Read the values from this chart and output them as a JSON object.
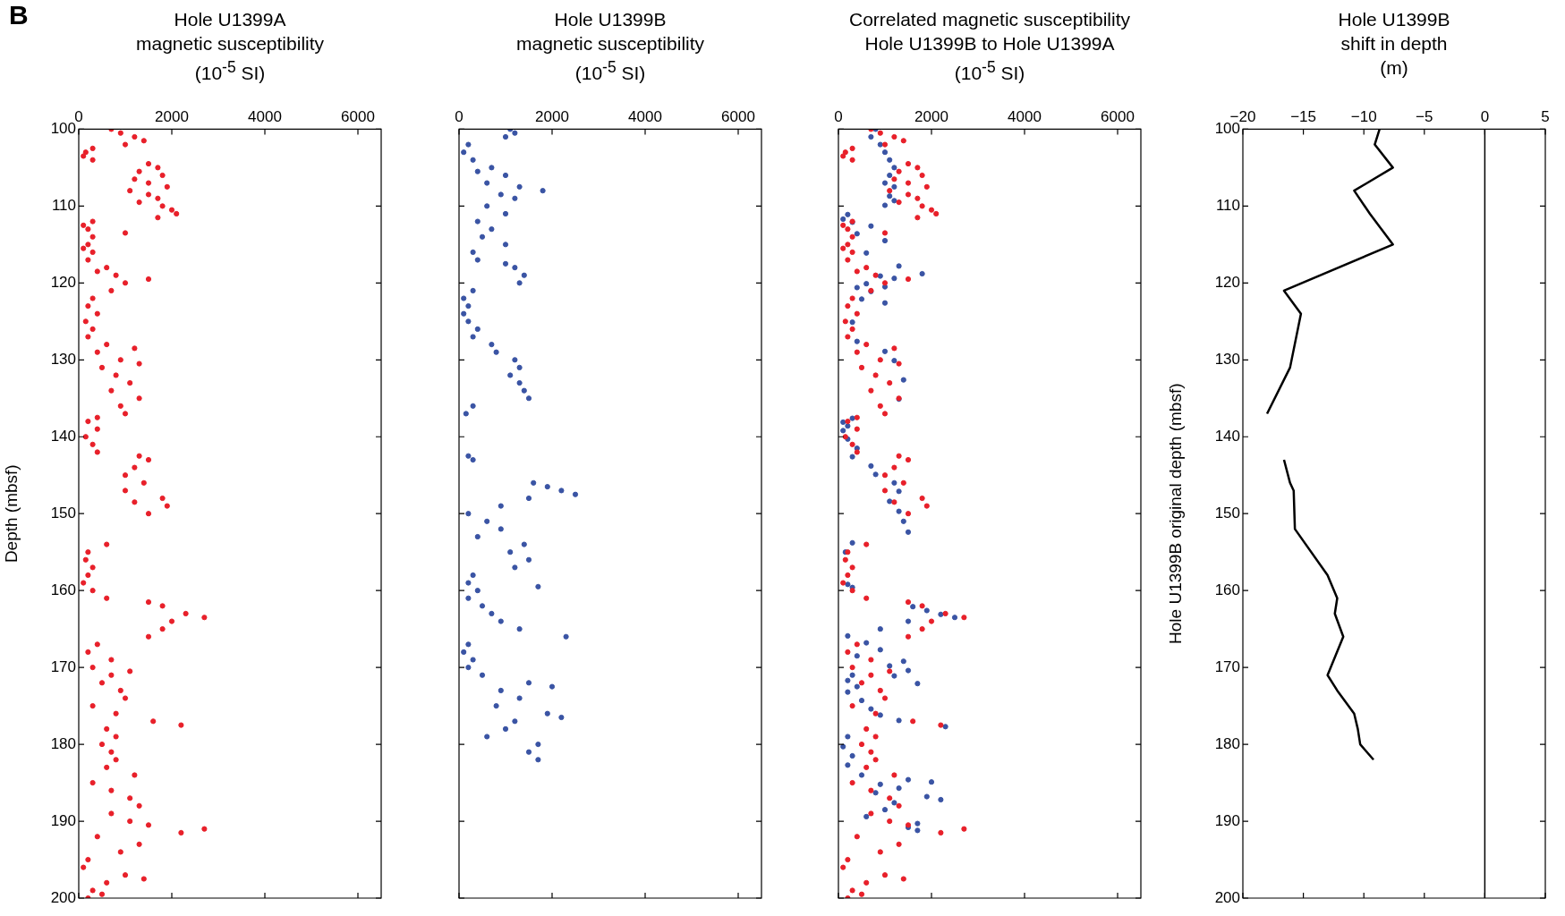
{
  "chart_data": [
    {
      "type": "scatter",
      "title": "Hole U1399A\nmagnetic susceptibility\n(10$^{-5}$ SI)",
      "ylabel": "Depth (mbsf)",
      "annotations": [
        "B"
      ],
      "xlim": [
        0,
        6500
      ],
      "xticks": [
        0,
        2000,
        4000,
        6000
      ],
      "ylim": [
        200,
        100
      ],
      "yticks": [
        100,
        110,
        120,
        130,
        140,
        150,
        160,
        170,
        180,
        190,
        200
      ],
      "marker": "circle",
      "series": [
        {
          "color": "#e8202a",
          "x": [
            700,
            900,
            1200,
            1400,
            1000,
            300,
            150,
            100,
            300,
            1500,
            1700,
            1300,
            1800,
            1200,
            1500,
            1900,
            1100,
            1500,
            1700,
            1300,
            1800,
            2000,
            2100,
            1700,
            300,
            100,
            200,
            1000,
            300,
            200,
            100,
            300,
            200,
            600,
            400,
            800,
            1500,
            1000,
            700,
            300,
            200,
            400,
            150,
            300,
            200,
            600,
            1200,
            400,
            900,
            1300,
            500,
            800,
            1100,
            700,
            1300,
            900,
            1000,
            400,
            200,
            400,
            150,
            300,
            400,
            1300,
            1500,
            1200,
            1000,
            1400,
            1000,
            1800,
            1200,
            1900,
            1500,
            600,
            200,
            150,
            300,
            200,
            100,
            300,
            600,
            1500,
            1800,
            2300,
            2700,
            2000,
            1800,
            1500,
            400,
            200,
            700,
            300,
            1100,
            700,
            500,
            900,
            1000,
            300,
            800,
            1600,
            2200,
            600,
            800,
            500,
            700,
            800,
            600,
            1200,
            300,
            700,
            1100,
            1300,
            700,
            1100,
            1500,
            2700,
            2200,
            400,
            1300,
            900,
            200,
            100,
            1000,
            1400,
            600,
            300,
            500,
            200
          ],
          "values": [
            100,
            100.5,
            101,
            101.5,
            102,
            102.5,
            103,
            103.5,
            104,
            104.5,
            105,
            105.5,
            106,
            106.5,
            107,
            107.5,
            108,
            108.5,
            109,
            109.5,
            110,
            110.5,
            111,
            111.5,
            112,
            112.5,
            113,
            113.5,
            114,
            115,
            115.5,
            116,
            117,
            118,
            118.5,
            119,
            119.5,
            120,
            121,
            122,
            123,
            124,
            125,
            126,
            127,
            128,
            128.5,
            129,
            130,
            130.5,
            131,
            132,
            133,
            134,
            135,
            136,
            137,
            137.5,
            138,
            139,
            140,
            141,
            142,
            142.5,
            143,
            144,
            145,
            146,
            147,
            148,
            148.5,
            149,
            150,
            154,
            155,
            156,
            157,
            158,
            159,
            160,
            161,
            161.5,
            162,
            163,
            163.5,
            164,
            165,
            166,
            167,
            168,
            169,
            170,
            170.5,
            171,
            172,
            173,
            174,
            175,
            176,
            177,
            177.5,
            178,
            179,
            180,
            181,
            182,
            183,
            184,
            185,
            186,
            187,
            188,
            189,
            190,
            190.5,
            191,
            191.5,
            192,
            193,
            194,
            195,
            196,
            197,
            197.5,
            198,
            199,
            199.5,
            200
          ]
        }
      ]
    },
    {
      "type": "scatter",
      "title": "Hole U1399B\nmagnetic susceptibility\n(10$^{-5}$ SI)",
      "tick_labels": "x",
      "xlim": [
        0,
        6500
      ],
      "xticks": [
        0,
        2000,
        4000,
        6000
      ],
      "ylim": [
        200,
        100
      ],
      "yticks": [
        100,
        110,
        120,
        130,
        140,
        150,
        160,
        170,
        180,
        190,
        200
      ],
      "marker": "circle",
      "series": [
        {
          "color": "#3a54a4",
          "x": [
            1100,
            1200,
            1000,
            200,
            100,
            300,
            700,
            400,
            1000,
            600,
            1300,
            1800,
            900,
            1200,
            600,
            1000,
            400,
            700,
            500,
            1000,
            300,
            400,
            1000,
            1200,
            1400,
            1300,
            300,
            100,
            200,
            100,
            200,
            400,
            300,
            700,
            800,
            1200,
            1300,
            1100,
            1300,
            1400,
            1500,
            300,
            150,
            200,
            300,
            1600,
            1900,
            2200,
            2500,
            1500,
            900,
            200,
            600,
            900,
            400,
            1400,
            1100,
            1500,
            1200,
            300,
            200,
            1700,
            400,
            200,
            500,
            700,
            900,
            1300,
            2300,
            200,
            100,
            300,
            200,
            500,
            1500,
            2000,
            900,
            1300,
            800,
            1900,
            2200,
            1200,
            1000,
            600,
            1700,
            1500,
            1700
          ],
          "values": [
            100,
            100.5,
            101,
            102,
            103,
            104,
            105,
            105.5,
            106,
            107,
            107.5,
            108,
            108.5,
            109,
            110,
            111,
            112,
            113,
            114,
            115,
            116,
            117,
            117.5,
            118,
            119,
            120,
            121,
            122,
            123,
            124,
            125,
            126,
            127,
            128,
            129,
            130,
            131,
            132,
            133,
            134,
            135,
            136,
            137,
            142.5,
            143,
            146,
            146.5,
            147,
            147.5,
            148,
            149,
            150,
            151,
            152,
            153,
            154,
            155,
            156,
            157,
            158,
            159,
            159.5,
            160,
            161,
            162,
            163,
            164,
            165,
            166,
            167,
            168,
            169,
            170,
            171,
            172,
            172.5,
            173,
            174,
            175,
            176,
            176.5,
            177,
            178,
            179,
            180,
            181,
            182
          ]
        }
      ]
    },
    {
      "type": "scatter",
      "title": "Correlated magnetic susceptibility\nHole U1399B to Hole U1399A\n(10$^{-5}$ SI)",
      "tick_labels": "x",
      "xlim": [
        0,
        6500
      ],
      "xticks": [
        0,
        2000,
        4000,
        6000
      ],
      "ylim": [
        200,
        100
      ],
      "yticks": [
        100,
        110,
        120,
        130,
        140,
        150,
        160,
        170,
        180,
        190,
        200
      ],
      "marker": "circle",
      "series": [
        {
          "color": "#e8202a",
          "x": [
            700,
            900,
            1200,
            1400,
            1000,
            300,
            150,
            100,
            300,
            1500,
            1700,
            1300,
            1800,
            1200,
            1500,
            1900,
            1100,
            1500,
            1700,
            1300,
            1800,
            2000,
            2100,
            1700,
            300,
            100,
            200,
            1000,
            300,
            200,
            100,
            300,
            200,
            600,
            400,
            800,
            1500,
            1000,
            700,
            300,
            200,
            400,
            150,
            300,
            200,
            600,
            1200,
            400,
            900,
            1300,
            500,
            800,
            1100,
            700,
            1300,
            900,
            1000,
            400,
            200,
            400,
            150,
            300,
            400,
            1300,
            1500,
            1200,
            1000,
            1400,
            1000,
            1800,
            1200,
            1900,
            1500,
            600,
            200,
            150,
            300,
            200,
            100,
            300,
            600,
            1500,
            1800,
            2300,
            2700,
            2000,
            1800,
            1500,
            400,
            200,
            700,
            300,
            1100,
            700,
            500,
            900,
            1000,
            300,
            800,
            1600,
            2200,
            600,
            800,
            500,
            700,
            800,
            600,
            1200,
            300,
            700,
            1100,
            1300,
            700,
            1100,
            1500,
            2700,
            2200,
            400,
            1300,
            900,
            200,
            100,
            1000,
            1400,
            600,
            300,
            500,
            200
          ],
          "values": [
            100,
            100.5,
            101,
            101.5,
            102,
            102.5,
            103,
            103.5,
            104,
            104.5,
            105,
            105.5,
            106,
            106.5,
            107,
            107.5,
            108,
            108.5,
            109,
            109.5,
            110,
            110.5,
            111,
            111.5,
            112,
            112.5,
            113,
            113.5,
            114,
            115,
            115.5,
            116,
            117,
            118,
            118.5,
            119,
            119.5,
            120,
            121,
            122,
            123,
            124,
            125,
            126,
            127,
            128,
            128.5,
            129,
            130,
            130.5,
            131,
            132,
            133,
            134,
            135,
            136,
            137,
            137.5,
            138,
            139,
            140,
            141,
            142,
            142.5,
            143,
            144,
            145,
            146,
            147,
            148,
            148.5,
            149,
            150,
            154,
            155,
            156,
            157,
            158,
            159,
            160,
            161,
            161.5,
            162,
            163,
            163.5,
            164,
            165,
            166,
            167,
            168,
            169,
            170,
            170.5,
            171,
            172,
            173,
            174,
            175,
            176,
            177,
            177.5,
            178,
            179,
            180,
            181,
            182,
            183,
            184,
            185,
            186,
            187,
            188,
            189,
            190,
            190.5,
            191,
            191.5,
            192,
            193,
            194,
            195,
            196,
            197,
            197.5,
            198,
            199,
            199.5,
            200
          ]
        },
        {
          "color": "#3a54a4",
          "x": [
            800,
            700,
            900,
            1000,
            1100,
            1200,
            1100,
            1000,
            1200,
            1100,
            1200,
            1000,
            200,
            100,
            300,
            700,
            400,
            1000,
            600,
            1300,
            1800,
            900,
            1200,
            600,
            1000,
            400,
            700,
            500,
            1000,
            300,
            400,
            1000,
            1200,
            1400,
            1300,
            300,
            100,
            200,
            100,
            200,
            400,
            300,
            700,
            800,
            1200,
            1300,
            1100,
            1300,
            1400,
            1500,
            300,
            150,
            200,
            300,
            1600,
            1900,
            2200,
            2500,
            1500,
            900,
            200,
            600,
            900,
            400,
            1400,
            1100,
            1500,
            1200,
            300,
            200,
            1700,
            400,
            200,
            500,
            700,
            900,
            1300,
            2300,
            200,
            100,
            300,
            200,
            500,
            1500,
            2000,
            900,
            1300,
            800,
            1900,
            2200,
            1200,
            1000,
            600,
            1700,
            1500,
            1700
          ],
          "values": [
            100,
            101,
            102,
            103,
            104,
            105,
            106,
            107,
            107.5,
            108.7,
            109.3,
            109.9,
            111.1,
            111.7,
            112.1,
            112.6,
            113.6,
            114.5,
            116.1,
            117.8,
            118.8,
            119.1,
            119.4,
            120.1,
            120.5,
            120.6,
            121.1,
            122.1,
            122.6,
            125.1,
            127.6,
            128.9,
            130.1,
            132.6,
            135.1,
            137.6,
            138.1,
            138.6,
            139.2,
            140.3,
            141.5,
            142.6,
            143.8,
            144.9,
            146,
            147.1,
            148.4,
            149.7,
            151,
            152.4,
            153.8,
            155,
            159.2,
            159.6,
            162.1,
            162.6,
            163.1,
            163.5,
            164,
            165,
            165.9,
            166.8,
            167.7,
            168.5,
            169.2,
            169.8,
            170.4,
            171.1,
            171,
            171.7,
            172.1,
            172.5,
            173.2,
            174.3,
            175.4,
            176.2,
            176.9,
            177.7,
            179,
            180.3,
            181.5,
            182.7,
            184,
            184.6,
            184.9,
            185.2,
            185.7,
            186.3,
            186.8,
            187.2,
            187.6,
            188.5,
            189.4,
            190.3,
            190.8,
            191.2
          ]
        }
      ]
    },
    {
      "type": "line",
      "title": "Hole U1399B\nshift in depth\n(m)",
      "ylabel": "Hole U1399B original depth (mbsf)",
      "xlim": [
        -20,
        5
      ],
      "xticks": [
        -20,
        -15,
        -10,
        -5,
        0,
        5
      ],
      "ylim": [
        200,
        100
      ],
      "yticks": [
        100,
        110,
        120,
        130,
        140,
        150,
        160,
        170,
        180,
        190,
        200
      ],
      "ref_lines": [
        {
          "axis": "x",
          "value": 0,
          "color": "#000000"
        }
      ],
      "series": [
        {
          "color": "#000000",
          "x": [
            -8.7,
            -9.1,
            -7.6,
            -10.8,
            -9.5,
            -7.6,
            -16.6,
            -15.2,
            -16.1,
            -18,
            null,
            -16.6,
            -16.1,
            -15.8,
            -15.7,
            -13,
            -12.2,
            -12.4,
            -11.7,
            -13,
            -12.2,
            -10.8,
            -10.5,
            -10.3,
            -9.2
          ],
          "values": [
            100,
            102,
            105,
            108,
            111,
            115,
            121,
            124,
            131,
            137,
            null,
            143,
            146,
            147,
            152,
            158,
            161,
            163,
            166,
            171,
            173,
            176,
            178,
            180,
            182
          ]
        }
      ]
    }
  ]
}
